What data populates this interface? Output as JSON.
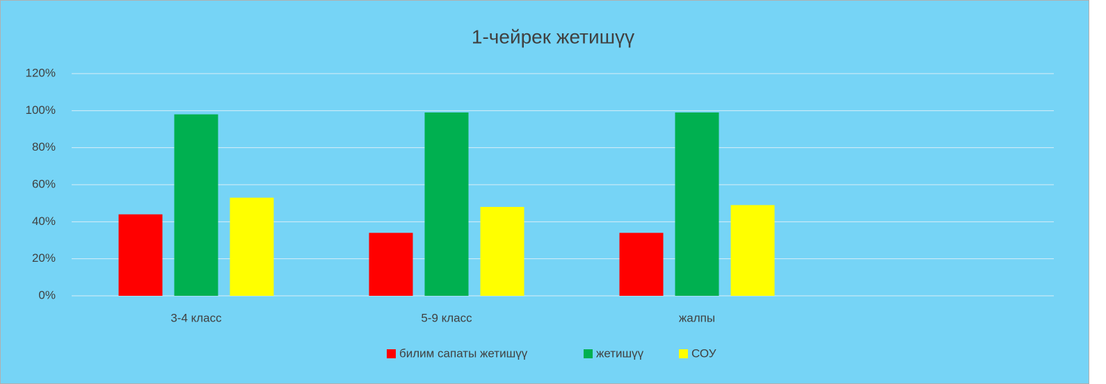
{
  "chart_data": {
    "type": "bar",
    "title": "1-чейрек жетишүү",
    "categories": [
      "3-4 класс",
      "5-9 класс",
      "жалпы",
      null
    ],
    "series": [
      {
        "name": "билим сапаты жетишүү",
        "color": "#ff0000",
        "values": [
          44,
          34,
          34,
          null
        ]
      },
      {
        "name": "жетишүү",
        "color": "#00b050",
        "values": [
          98,
          99,
          99,
          null
        ]
      },
      {
        "name": "СОУ",
        "color": "#ffff00",
        "values": [
          53,
          48,
          49,
          null
        ]
      }
    ],
    "ylim": [
      0,
      120
    ],
    "yticks": [
      {
        "value": 0,
        "label": "0%"
      },
      {
        "value": 20,
        "label": "20%"
      },
      {
        "value": 40,
        "label": "40%"
      },
      {
        "value": 60,
        "label": "60%"
      },
      {
        "value": 80,
        "label": "80%"
      },
      {
        "value": 100,
        "label": "100%"
      },
      {
        "value": 120,
        "label": "120%"
      }
    ],
    "grid": true,
    "legend": "bottom"
  }
}
